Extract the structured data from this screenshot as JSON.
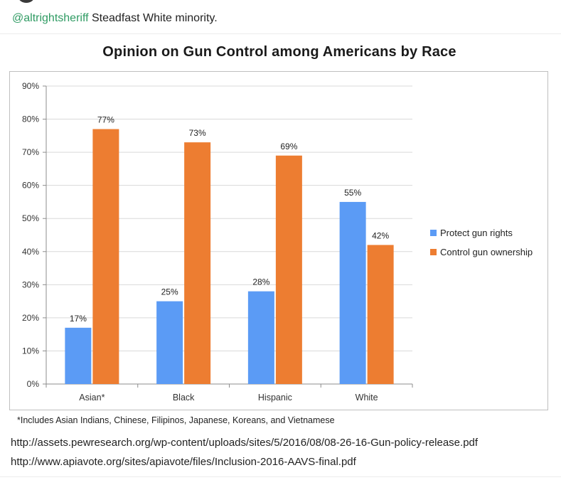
{
  "post": {
    "handle": "@altrightsheriff",
    "text": "Steadfast White minority."
  },
  "figure": {
    "footnote": "*Includes Asian Indians, Chinese, Filipinos, Japanese, Koreans, and Vietnamese"
  },
  "sources": [
    "http://assets.pewresearch.org/wp-content/uploads/sites/5/2016/08/08-26-16-Gun-policy-release.pdf",
    "http://www.apiavote.org/sites/apiavote/files/Inclusion-2016-AAVS-final.pdf"
  ],
  "chart_data": {
    "type": "bar",
    "title": "Opinion on Gun Control among Americans by Race",
    "categories": [
      "Asian*",
      "Black",
      "Hispanic",
      "White"
    ],
    "series": [
      {
        "name": "Protect gun rights",
        "color": "#5b9bf5",
        "values": [
          17,
          25,
          28,
          55
        ],
        "labels": [
          "17%",
          "25%",
          "28%",
          "55%"
        ]
      },
      {
        "name": "Control gun ownership",
        "color": "#ed7d31",
        "values": [
          77,
          73,
          69,
          42
        ],
        "labels": [
          "77%",
          "73%",
          "69%",
          "42%"
        ]
      }
    ],
    "ylim": [
      0,
      90
    ],
    "yticks": [
      0,
      10,
      20,
      30,
      40,
      50,
      60,
      70,
      80,
      90
    ],
    "ytick_labels": [
      "0%",
      "10%",
      "20%",
      "30%",
      "40%",
      "50%",
      "60%",
      "70%",
      "80%",
      "90%"
    ],
    "grid": true,
    "legend": "right",
    "xlabel": "",
    "ylabel": ""
  }
}
